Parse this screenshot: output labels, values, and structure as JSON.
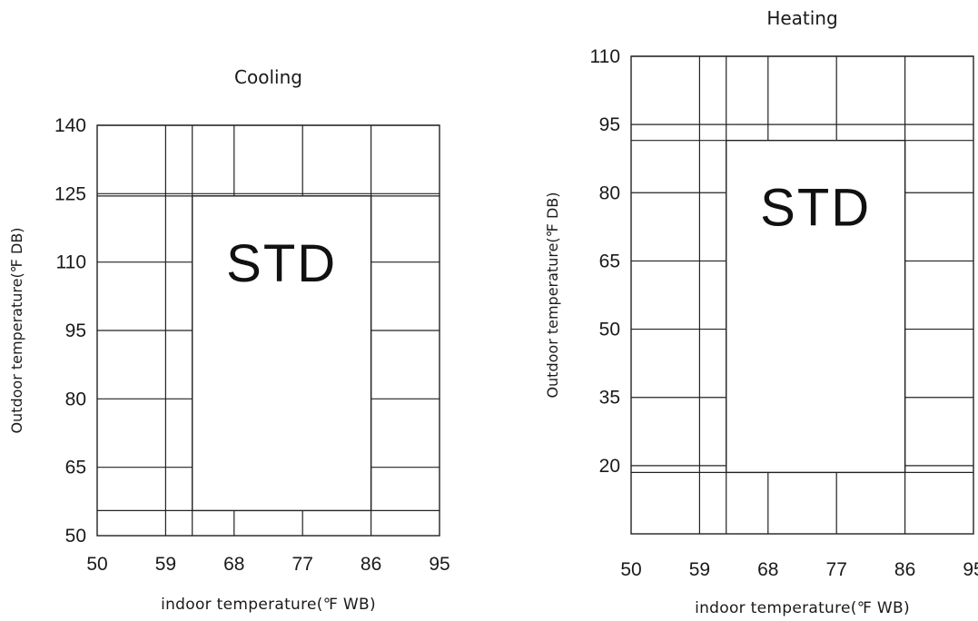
{
  "chart_data": [
    {
      "type": "operating-range",
      "title": "Cooling",
      "xlabel": "indoor temperature(℉ WB)",
      "ylabel": "Outdoor temperature(℉ DB)",
      "x_ticks": [
        50,
        59,
        68,
        77,
        86,
        95
      ],
      "y_ticks": [
        50,
        65,
        80,
        95,
        110,
        125,
        140
      ],
      "xlim": [
        50,
        95
      ],
      "ylim": [
        50,
        140
      ],
      "x_gridlines": [
        59,
        62.5,
        68,
        77,
        86
      ],
      "y_gridlines": [
        55.5,
        65,
        80,
        95,
        110,
        124.5,
        125,
        140
      ],
      "std_region": {
        "label": "STD",
        "x": [
          62.5,
          86
        ],
        "y": [
          55.5,
          124.5
        ]
      }
    },
    {
      "type": "operating-range",
      "title": "Heating",
      "xlabel": "indoor temperature(℉ WB)",
      "ylabel": "Outdoor temperature(℉ DB)",
      "x_ticks": [
        50,
        59,
        68,
        77,
        86,
        95
      ],
      "y_ticks": [
        20,
        35,
        50,
        65,
        80,
        95,
        110
      ],
      "xlim": [
        50,
        95
      ],
      "ylim": [
        5,
        110
      ],
      "x_gridlines": [
        59,
        62.5,
        68,
        77,
        86
      ],
      "y_gridlines": [
        18.5,
        20,
        35,
        50,
        65,
        80,
        91.5,
        95,
        110
      ],
      "std_region": {
        "label": "STD",
        "x": [
          62.5,
          86
        ],
        "y": [
          18.5,
          91.5
        ]
      }
    }
  ]
}
